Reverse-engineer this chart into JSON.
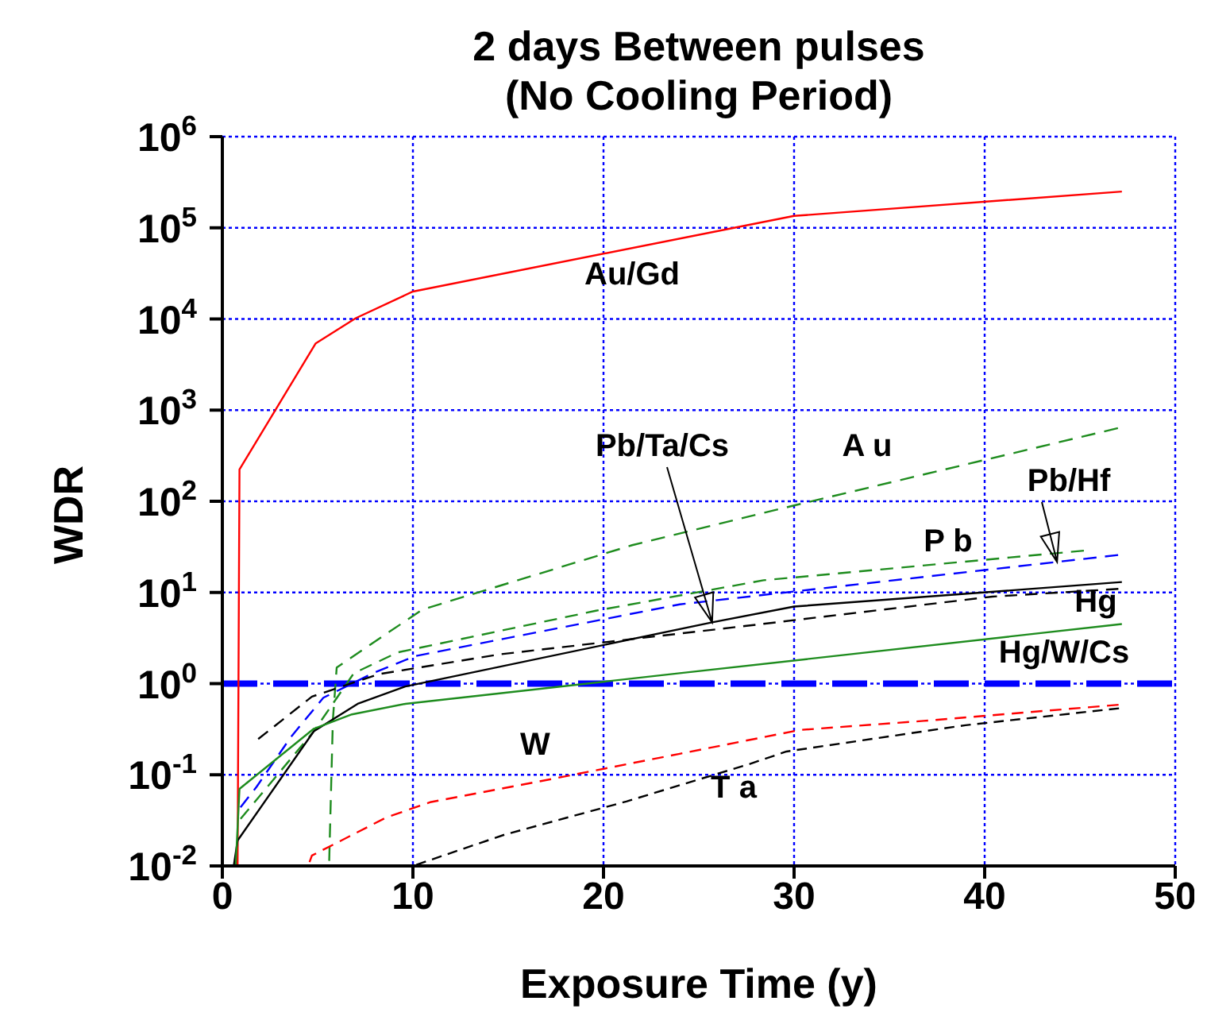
{
  "chart_data": {
    "type": "line",
    "title": "2 days Between pulses",
    "subtitle": "(No Cooling Period)",
    "xlabel": "Exposure Time (y)",
    "ylabel": "WDR",
    "log": "y",
    "grid": true,
    "xlim": [
      0,
      50
    ],
    "xticks": [
      0,
      10,
      20,
      30,
      40,
      50
    ],
    "ylim": [
      0.01,
      1000000
    ],
    "yticks": [
      {
        "value": 0.01,
        "label": "10$^{-2}$"
      },
      {
        "value": 0.1,
        "label": "10$^{-1}$"
      },
      {
        "value": 1,
        "label": "10$^{0}$"
      },
      {
        "value": 10,
        "label": "10$^{1}$"
      },
      {
        "value": 100,
        "label": "10$^{2}$"
      },
      {
        "value": 1000,
        "label": "10$^{3}$"
      },
      {
        "value": 10000,
        "label": "10$^{4}$"
      },
      {
        "value": 100000,
        "label": "10$^{5}$"
      },
      {
        "value": 1000000,
        "label": "10$^{6}$"
      }
    ],
    "series": [
      {
        "color": "#ff0000",
        "line_style": "solid",
        "x": [
          0.8,
          0.9,
          4.9,
          7,
          10,
          30,
          47.2
        ],
        "values": [
          0.01,
          224,
          5400,
          10200,
          20000,
          135000,
          250000
        ]
      },
      {
        "color": "#1e8c1e",
        "line_style": "dashed",
        "x": [
          5.6,
          5.8,
          6,
          7.3,
          10.5,
          21.5,
          30,
          47.2
        ],
        "values": [
          0.01,
          0.4,
          1.5,
          2.3,
          6.5,
          33,
          90,
          650
        ]
      },
      {
        "color": "#1e8c1e",
        "line_style": "dashed",
        "x": [
          0.8,
          4.8,
          6.9,
          9.2,
          19.6,
          28.4,
          45.4
        ],
        "values": [
          0.03,
          0.3,
          1.3,
          2.2,
          6.3,
          13.6,
          29
        ]
      },
      {
        "color": "#0000ff",
        "line_style": "dashed",
        "x": [
          0.8,
          1.8,
          3.6,
          5.3,
          7.9,
          10.1,
          24,
          47.2
        ],
        "values": [
          0.04,
          0.074,
          0.26,
          0.7,
          1.3,
          2,
          7.4,
          26
        ]
      },
      {
        "color": "#000000",
        "line_style": "solid",
        "x": [
          0.6,
          0.8,
          4.8,
          7.1,
          9.6,
          25.7,
          30,
          47.2
        ],
        "values": [
          0.01,
          0.019,
          0.3,
          0.6,
          0.93,
          4.7,
          7,
          13
        ]
      },
      {
        "color": "#000000",
        "line_style": "dashed",
        "x": [
          1.7,
          4.7,
          8.2,
          14.6,
          27.5,
          40.4,
          47.2
        ],
        "values": [
          0.23,
          0.72,
          1.27,
          2.1,
          4.3,
          9,
          11
        ]
      },
      {
        "color": "#1e8c1e",
        "line_style": "solid",
        "x": [
          0.7,
          0.9,
          4.8,
          6.8,
          9.6,
          24,
          47.2
        ],
        "values": [
          0.01,
          0.07,
          0.32,
          0.46,
          0.6,
          1.3,
          4.5
        ]
      },
      {
        "color": "#ff0000",
        "line_style": "dashed",
        "x": [
          4.5,
          4.7,
          8.6,
          10.9,
          17.3,
          24,
          30.3,
          36.8,
          47.2
        ],
        "values": [
          0.01,
          0.013,
          0.034,
          0.05,
          0.09,
          0.17,
          0.31,
          0.39,
          0.59
        ]
      },
      {
        "color": "#000000",
        "line_style": "dashed",
        "x": [
          10,
          14.8,
          21.2,
          27.6,
          29.6,
          39,
          47.2
        ],
        "values": [
          0.01,
          0.022,
          0.051,
          0.13,
          0.18,
          0.35,
          0.54
        ]
      }
    ],
    "ref_lines": [
      {
        "axis": "y",
        "value": 1,
        "color": "#0000ff",
        "line_style": "dashed"
      }
    ],
    "annotations": [
      "Au/Gd",
      {
        "text": "Pb/Ta/Cs",
        "x": 25.7,
        "y": 4.7
      },
      "A u",
      {
        "text": "Pb/Hf",
        "x": 43.8,
        "y": 21.6
      },
      "P b",
      "Hg",
      "Hg/W/Cs",
      "W",
      "T a"
    ]
  }
}
